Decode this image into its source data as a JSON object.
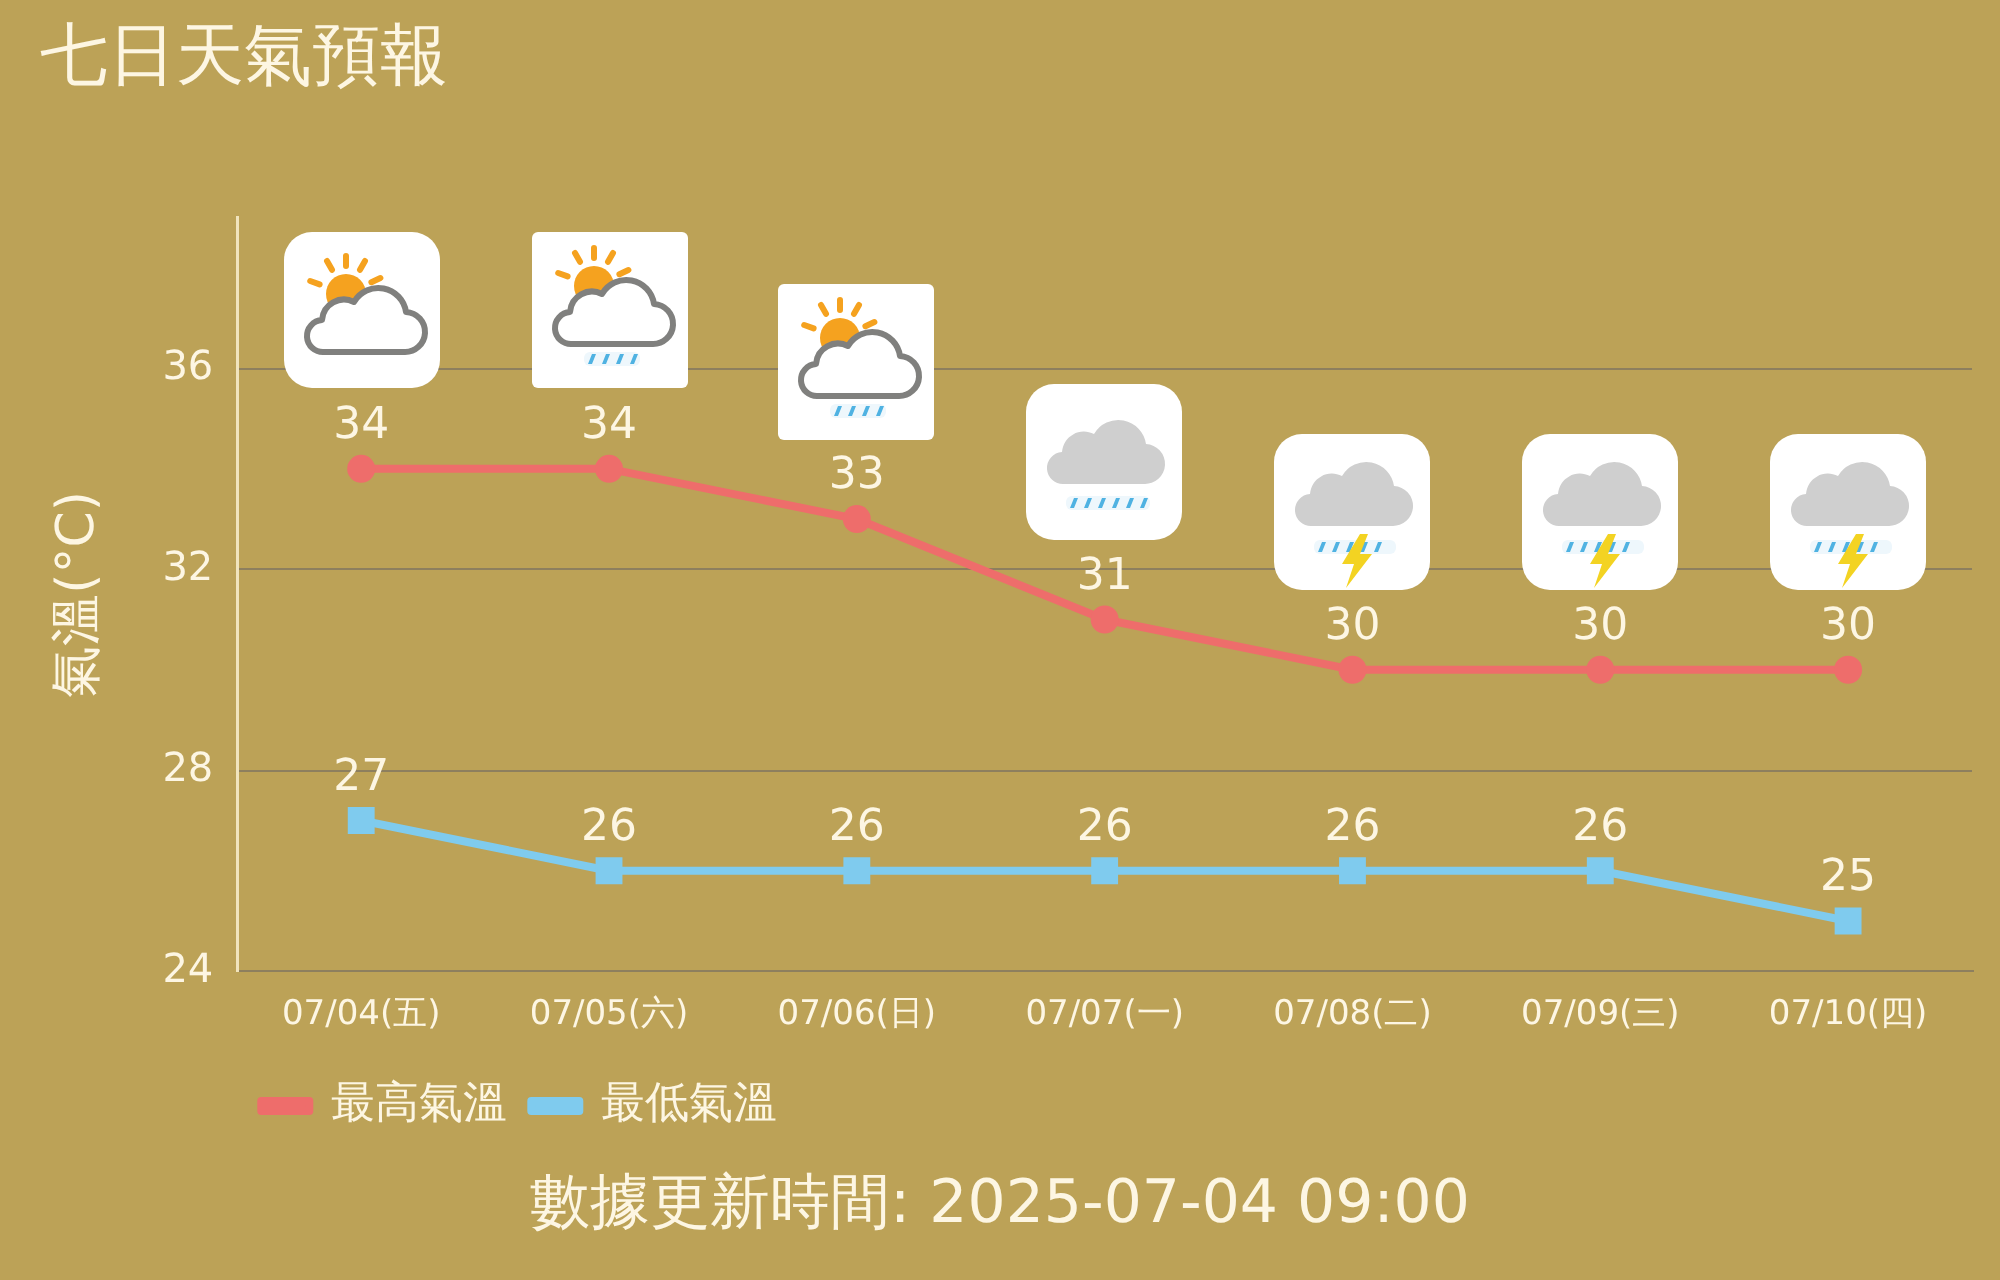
{
  "chart_data": {
    "type": "line",
    "title": "七日天氣預報",
    "ylabel": "氣溫(°C)",
    "categories": [
      "07/04(五)",
      "07/05(六)",
      "07/06(日)",
      "07/07(一)",
      "07/08(二)",
      "07/09(三)",
      "07/10(四)"
    ],
    "series": [
      {
        "name": "最高氣溫",
        "color": "#ee6d6b",
        "marker": "circle",
        "values": [
          34,
          34,
          33,
          31,
          30,
          30,
          30
        ]
      },
      {
        "name": "最低氣溫",
        "color": "#7fcbee",
        "marker": "square",
        "values": [
          27,
          26,
          26,
          26,
          26,
          26,
          25
        ]
      }
    ],
    "ylim": [
      24,
      39
    ],
    "yticks": [
      24,
      28,
      32,
      36
    ],
    "grid": "y",
    "legend": "bottom left",
    "data_labels": true,
    "line_style": "solid",
    "annotations": [
      "數據更新時間: 2025-07-04 09:00"
    ]
  }
}
